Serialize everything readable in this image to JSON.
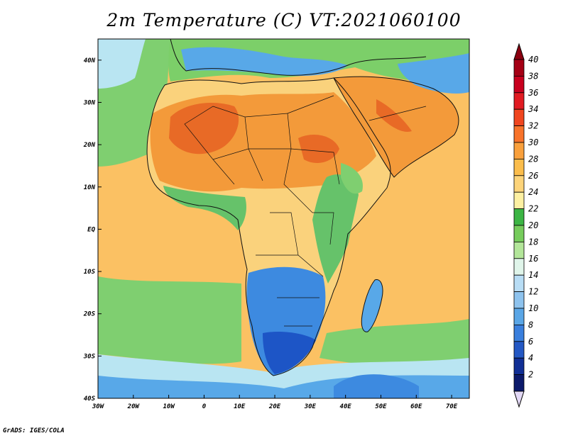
{
  "title": "2m Temperature (C) VT:2021060100",
  "footer": "GrADS: IGES/COLA",
  "map": {
    "variable": "2m Temperature",
    "units": "C",
    "valid_time": "2021060100",
    "lon_range": [
      -30,
      75
    ],
    "lat_range": [
      -40,
      45
    ],
    "lon_ticks": [
      "30W",
      "20W",
      "10W",
      "0",
      "10E",
      "20E",
      "30E",
      "40E",
      "50E",
      "60E",
      "70E"
    ],
    "lat_ticks": [
      "40N",
      "30N",
      "20N",
      "10N",
      "EQ",
      "10S",
      "20S",
      "30S",
      "40S"
    ]
  },
  "colorbar": {
    "labels": [
      "40",
      "38",
      "36",
      "34",
      "32",
      "30",
      "28",
      "26",
      "24",
      "22",
      "20",
      "18",
      "16",
      "14",
      "12",
      "10",
      "8",
      "6",
      "4",
      "2"
    ],
    "colors": [
      "#a50015",
      "#c8001e",
      "#e11b22",
      "#f0461f",
      "#f8732a",
      "#f9a03c",
      "#fbbd4c",
      "#fdd47a",
      "#fdf0a2",
      "#3cb544",
      "#76cc5c",
      "#b3e69a",
      "#e0f5ea",
      "#b8ddf5",
      "#8ec3ee",
      "#5aa6e6",
      "#3a7fdd",
      "#2458c4",
      "#112f95",
      "#0c1a6b"
    ],
    "top_cap_color": "#8b0010",
    "bottom_cap_color": "#e2d8f5"
  },
  "fields": {
    "ocean_color": "#fbc163",
    "cool_ocean_color": "#7fcf70",
    "cold_ocean_color": "#b9e5f2",
    "sahara_color": "#f39a3a",
    "hot_core_color": "#e86a26",
    "savanna_color": "#fad27c",
    "highland_color": "#66c26a",
    "south_cold_color": "#3d8ae0",
    "south_coldest_color": "#1d55c6",
    "med_color": "#58a8e8",
    "europe_color": "#7ccf69"
  }
}
